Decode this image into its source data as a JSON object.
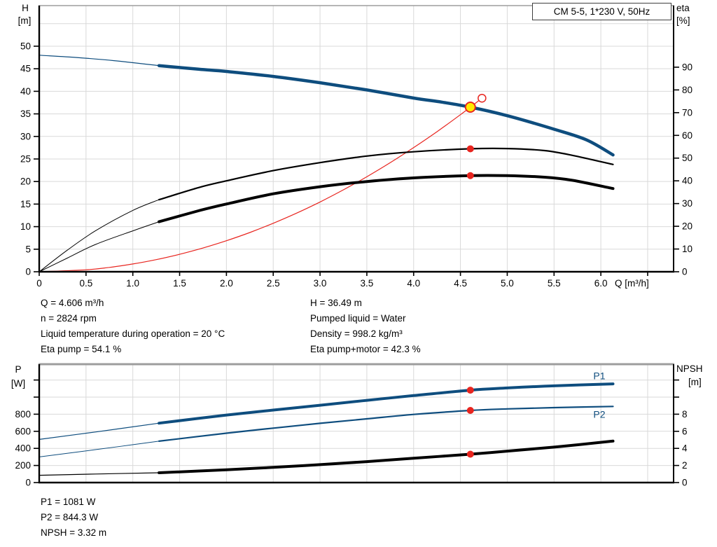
{
  "title_box": {
    "label": "CM 5-5, 1*230 V, 50Hz"
  },
  "colors": {
    "blue": "#0e4d7e",
    "black": "#000000",
    "red": "#e8251f",
    "yellow": "#ffeb00",
    "grid": "#d9d9d9",
    "axis": "#000000",
    "border_gray": "#9d9d9d",
    "text": "#000000"
  },
  "annotations": {
    "top_left": [
      "Q = 4.606 m³/h",
      "n = 2824 rpm",
      "Liquid temperature during operation = 20 °C",
      "Eta pump = 54.1 %"
    ],
    "top_right": [
      "H = 36.49 m",
      "Pumped liquid = Water",
      "Density = 998.2 kg/m³",
      "Eta pump+motor = 42.3 %"
    ],
    "bottom": [
      "P1 = 1081 W",
      "P2 = 844.3 W",
      "NPSH = 3.32 m"
    ]
  },
  "chart_data": [
    {
      "id": "qh",
      "type": "line",
      "title": "CM 5-5, 1*230 V, 50Hz",
      "x": {
        "label": "Q [m³/h]",
        "range": [
          0,
          6.777
        ],
        "grid_step": 0.5,
        "tick_values": [
          0,
          0.5,
          1.0,
          1.5,
          2.0,
          2.5,
          3.0,
          3.5,
          4.0,
          4.5,
          5.0,
          5.5,
          6.0,
          6.5
        ],
        "tick_labels": [
          "0",
          "0.5",
          "1.0",
          "1.5",
          "2.0",
          "2.5",
          "3.0",
          "3.5",
          "4.0",
          "4.5",
          "5.0",
          "5.5",
          "6.0",
          ""
        ]
      },
      "left": {
        "label": "H",
        "unit": "[m]",
        "range": [
          0,
          59
        ],
        "grid_step": 5,
        "ticks": [
          0,
          5,
          10,
          15,
          20,
          25,
          30,
          35,
          40,
          45,
          50
        ],
        "labeled_max": 50
      },
      "right": {
        "label": "eta",
        "unit": "[%]",
        "range": [
          0,
          117.1
        ],
        "ticks": [
          0,
          10,
          20,
          30,
          40,
          50,
          60,
          70,
          80,
          90
        ],
        "labeled_max": 90
      },
      "series": [
        {
          "name": "system-curve",
          "axis": "left",
          "color": "red",
          "thin_width": 1.2,
          "width": 1.2,
          "thin_until": 99,
          "points": [
            [
              0,
              0
            ],
            [
              0.5,
              0.43
            ],
            [
              0.75,
              0.97
            ],
            [
              1,
              1.72
            ],
            [
              1.25,
              2.69
            ],
            [
              1.5,
              3.87
            ],
            [
              1.75,
              5.27
            ],
            [
              2,
              6.88
            ],
            [
              2.25,
              8.7
            ],
            [
              2.5,
              10.75
            ],
            [
              2.75,
              13.0
            ],
            [
              3,
              15.47
            ],
            [
              3.25,
              18.16
            ],
            [
              3.5,
              21.06
            ],
            [
              3.75,
              24.18
            ],
            [
              4,
              27.51
            ],
            [
              4.25,
              31.06
            ],
            [
              4.5,
              34.82
            ],
            [
              4.73,
              38.47
            ]
          ]
        },
        {
          "name": "pump-qh-curve",
          "axis": "left",
          "color": "blue",
          "thin_width": 1.2,
          "width": 4.5,
          "thin_until": 1.28,
          "points": [
            [
              0,
              48
            ],
            [
              0.4,
              47.5
            ],
            [
              0.8,
              46.8
            ],
            [
              1.28,
              45.7
            ],
            [
              1.7,
              44.9
            ],
            [
              2,
              44.4
            ],
            [
              2.5,
              43.3
            ],
            [
              3,
              41.9
            ],
            [
              3.5,
              40.3
            ],
            [
              4,
              38.5
            ],
            [
              4.3,
              37.6
            ],
            [
              4.606,
              36.49
            ],
            [
              5,
              34.6
            ],
            [
              5.5,
              31.6
            ],
            [
              5.85,
              29.2
            ],
            [
              6.13,
              25.9
            ]
          ]
        },
        {
          "name": "eta-pump-curve",
          "axis": "right",
          "color": "black",
          "thin_width": 1,
          "width": 2.2,
          "thin_until": 1.28,
          "points": [
            [
              0,
              0
            ],
            [
              0.3,
              9.5
            ],
            [
              0.6,
              18
            ],
            [
              1,
              27
            ],
            [
              1.28,
              31.7
            ],
            [
              1.7,
              37
            ],
            [
              2,
              40
            ],
            [
              2.5,
              44.5
            ],
            [
              3,
              48
            ],
            [
              3.5,
              50.9
            ],
            [
              4,
              52.8
            ],
            [
              4.606,
              54.1
            ],
            [
              5,
              54.2
            ],
            [
              5.4,
              53.3
            ],
            [
              5.7,
              51.2
            ],
            [
              6.13,
              47.2
            ]
          ]
        },
        {
          "name": "eta-pump-motor-curve",
          "axis": "right",
          "color": "black",
          "thin_width": 1,
          "width": 4,
          "thin_until": 1.28,
          "points": [
            [
              0,
              0
            ],
            [
              0.3,
              6
            ],
            [
              0.6,
              12
            ],
            [
              1,
              18
            ],
            [
              1.28,
              22
            ],
            [
              1.7,
              26.8
            ],
            [
              2,
              29.8
            ],
            [
              2.5,
              34.3
            ],
            [
              3,
              37.4
            ],
            [
              3.5,
              39.7
            ],
            [
              4,
              41.3
            ],
            [
              4.606,
              42.3
            ],
            [
              5,
              42.3
            ],
            [
              5.4,
              41.6
            ],
            [
              5.7,
              40.2
            ],
            [
              6.13,
              36.6
            ]
          ]
        }
      ],
      "markers": [
        {
          "style": "dot",
          "axis": "right",
          "q": 4.606,
          "v": 54.1,
          "name": "eta-pump-duty-dot"
        },
        {
          "style": "dot",
          "axis": "right",
          "q": 4.606,
          "v": 42.3,
          "name": "eta-pump-motor-duty-dot"
        },
        {
          "style": "ghost",
          "axis": "left",
          "q": 4.73,
          "v": 38.47,
          "name": "requested-duty-marker"
        },
        {
          "style": "duty",
          "axis": "left",
          "q": 4.606,
          "v": 36.49,
          "name": "duty-point-marker"
        }
      ]
    },
    {
      "id": "power",
      "type": "line",
      "x": {
        "label": "",
        "range": [
          0,
          6.777
        ],
        "grid_step": 0.5,
        "tick_values": [],
        "tick_labels": []
      },
      "left": {
        "label": "P",
        "unit": "[W]",
        "range": [
          0,
          1385
        ],
        "grid_step": 200,
        "ticks": [
          0,
          200,
          400,
          600,
          800,
          1000,
          1200
        ],
        "labeled_max": 800
      },
      "right": {
        "label": "NPSH",
        "unit": "[m]",
        "range": [
          0,
          13.85
        ],
        "ticks": [
          0,
          2,
          4,
          6,
          8,
          10,
          12
        ],
        "labeled_max": 8
      },
      "series": [
        {
          "name": "p1-curve",
          "axis": "left",
          "color": "blue",
          "thin_width": 1.2,
          "width": 4,
          "thin_until": 1.28,
          "label": "P1",
          "label_at": [
            5.92,
            1210
          ],
          "points": [
            [
              0,
              505
            ],
            [
              0.6,
              592
            ],
            [
              1.28,
              695
            ],
            [
              2,
              790
            ],
            [
              2.5,
              848
            ],
            [
              3,
              905
            ],
            [
              3.5,
              962
            ],
            [
              4,
              1018
            ],
            [
              4.606,
              1081
            ],
            [
              5,
              1107
            ],
            [
              5.5,
              1132
            ],
            [
              6.13,
              1155
            ]
          ]
        },
        {
          "name": "p2-curve",
          "axis": "left",
          "color": "blue",
          "thin_width": 1,
          "width": 2.2,
          "thin_until": 1.28,
          "label": "P2",
          "label_at": [
            5.92,
            758
          ],
          "points": [
            [
              0,
              300
            ],
            [
              0.6,
              385
            ],
            [
              1.28,
              484
            ],
            [
              2,
              578
            ],
            [
              2.5,
              637
            ],
            [
              3,
              693
            ],
            [
              3.5,
              746
            ],
            [
              4,
              797
            ],
            [
              4.606,
              844
            ],
            [
              5,
              862
            ],
            [
              5.5,
              877
            ],
            [
              6.13,
              891
            ]
          ]
        },
        {
          "name": "npsh-curve",
          "axis": "right",
          "color": "black",
          "thin_width": 1.2,
          "width": 4,
          "thin_until": 1.28,
          "points": [
            [
              0,
              0.85
            ],
            [
              0.6,
              1.0
            ],
            [
              1.28,
              1.15
            ],
            [
              2,
              1.5
            ],
            [
              2.5,
              1.78
            ],
            [
              3,
              2.1
            ],
            [
              3.5,
              2.45
            ],
            [
              4,
              2.85
            ],
            [
              4.606,
              3.32
            ],
            [
              5,
              3.68
            ],
            [
              5.5,
              4.15
            ],
            [
              6.13,
              4.85
            ]
          ]
        }
      ],
      "markers": [
        {
          "style": "dot",
          "axis": "left",
          "q": 4.606,
          "v": 1081,
          "name": "p1-duty-dot"
        },
        {
          "style": "dot",
          "axis": "left",
          "q": 4.606,
          "v": 844.3,
          "name": "p2-duty-dot"
        },
        {
          "style": "dot",
          "axis": "right",
          "q": 4.606,
          "v": 3.32,
          "name": "npsh-duty-dot"
        }
      ]
    }
  ]
}
